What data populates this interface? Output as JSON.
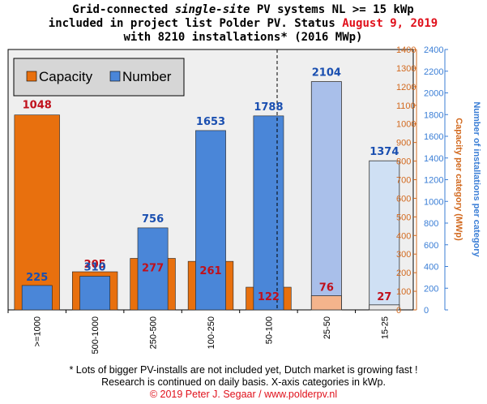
{
  "title": {
    "line1_pre": "Grid-connected ",
    "line1_em": "single-site",
    "line1_post": " PV systems NL >= 15 kWp",
    "line2_pre": "included in project list Polder PV. Status ",
    "line2_red": "August 9, 2019",
    "line3": "with 8210 installations* (2016 MWp)"
  },
  "footnote": {
    "line1": "* Lots of bigger PV-installs are not included yet, Dutch market is growing fast !",
    "line2": "Research is continued on daily basis. X-axis categories in kWp.",
    "line3": "© 2019 Peter J. Segaar / www.polderpv.nl"
  },
  "chart_data": {
    "type": "bar",
    "categories": [
      ">=1000",
      "500-1000",
      "250-500",
      "100-250",
      "50-100",
      "25-50",
      "15-25"
    ],
    "series": [
      {
        "name": "Capacity",
        "values": [
          1048,
          205,
          277,
          261,
          122,
          76,
          27
        ],
        "axis": "left",
        "color": "#e8700e",
        "faded_color": "#f4b48c"
      },
      {
        "name": "Number",
        "values": [
          225,
          310,
          756,
          1653,
          1788,
          2104,
          1374
        ],
        "axis": "right",
        "color": "#4a86d8",
        "faded_colors": [
          "#a9bfea",
          "#cfe0f4"
        ]
      }
    ],
    "left_axis": {
      "title": "Capacity per category (MWp)",
      "ylim": [
        0,
        1400
      ],
      "ticks": [
        0,
        100,
        200,
        300,
        400,
        500,
        600,
        700,
        800,
        900,
        1000,
        1100,
        1200,
        1300,
        1400
      ]
    },
    "right_axis": {
      "title": "Number of installations per category",
      "ylim": [
        0,
        2400
      ],
      "ticks": [
        0,
        200,
        400,
        600,
        800,
        1000,
        1200,
        1400,
        1600,
        1800,
        2000,
        2200,
        2400
      ]
    },
    "legend": {
      "position": "top-left",
      "entries": [
        "Capacity",
        "Number"
      ]
    },
    "divider_after_category": 4,
    "grid": false,
    "plot_background": "#efefef"
  }
}
